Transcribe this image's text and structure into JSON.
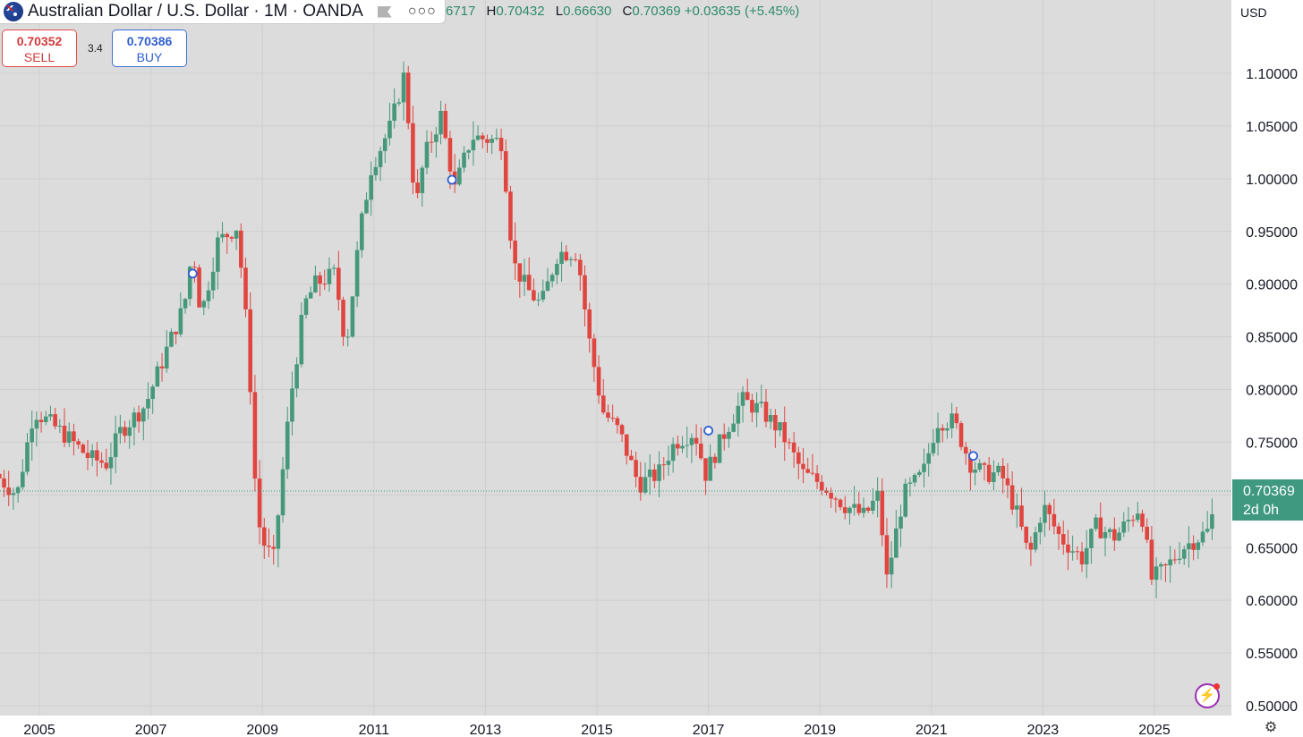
{
  "header": {
    "title": "Australian Dollar / U.S. Dollar · 1M · OANDA",
    "ohlc_open_tail": "6717",
    "high_key": "H",
    "high": "0.70432",
    "low_key": "L",
    "low": "0.66630",
    "close_key": "C",
    "close": "0.70369",
    "change": "+0.03635 (+5.45%)"
  },
  "trade": {
    "sell_price": "0.70352",
    "sell_label": "SELL",
    "spread": "3.4",
    "buy_price": "0.70386",
    "buy_label": "BUY"
  },
  "currency": "USD",
  "last_price": {
    "value": "0.70369",
    "countdown": "2d 0h",
    "color": "#3f9880"
  },
  "colors": {
    "up": "#46987a",
    "down": "#e0453f",
    "background": "#dcdcdc",
    "grid": "#cfcfcf",
    "marker": "#2f5fd0"
  },
  "icons": [
    "flag-icon",
    "more-icon",
    "bolt-icon",
    "settings-icon"
  ],
  "chart_data": {
    "type": "candlestick",
    "interval": "1M",
    "ylim": [
      0.5,
      1.13
    ],
    "xlim": [
      2004.2,
      2026.9
    ],
    "yticks": [
      "0.50000",
      "0.55000",
      "0.60000",
      "0.65000",
      "0.70000",
      "0.75000",
      "0.80000",
      "0.85000",
      "0.90000",
      "0.95000",
      "1.00000",
      "1.05000",
      "1.10000"
    ],
    "xticks": [
      "2005",
      "2007",
      "2009",
      "2011",
      "2013",
      "2015",
      "2017",
      "2019",
      "2021",
      "2023",
      "2025"
    ],
    "last_close": 0.70369,
    "markers": [
      {
        "t": 2007.75,
        "price": 0.91
      },
      {
        "t": 2012.4,
        "price": 0.999
      },
      {
        "t": 2017.0,
        "price": 0.761
      },
      {
        "t": 2021.75,
        "price": 0.737
      }
    ],
    "anchors": [
      [
        2004.2,
        0.72
      ],
      [
        2004.6,
        0.7
      ],
      [
        2004.9,
        0.78
      ],
      [
        2005.15,
        0.77
      ],
      [
        2005.5,
        0.755
      ],
      [
        2005.9,
        0.735
      ],
      [
        2006.2,
        0.73
      ],
      [
        2006.45,
        0.76
      ],
      [
        2006.9,
        0.785
      ],
      [
        2007.3,
        0.84
      ],
      [
        2007.6,
        0.88
      ],
      [
        2007.75,
        0.935
      ],
      [
        2007.9,
        0.87
      ],
      [
        2008.2,
        0.94
      ],
      [
        2008.55,
        0.955
      ],
      [
        2008.75,
        0.84
      ],
      [
        2008.9,
        0.68
      ],
      [
        2009.05,
        0.65
      ],
      [
        2009.2,
        0.64
      ],
      [
        2009.5,
        0.79
      ],
      [
        2009.75,
        0.88
      ],
      [
        2009.95,
        0.9
      ],
      [
        2010.3,
        0.91
      ],
      [
        2010.5,
        0.84
      ],
      [
        2010.75,
        0.95
      ],
      [
        2010.95,
        1.01
      ],
      [
        2011.3,
        1.05
      ],
      [
        2011.55,
        1.1
      ],
      [
        2011.75,
        0.97
      ],
      [
        2011.9,
        1.02
      ],
      [
        2012.2,
        1.06
      ],
      [
        2012.45,
        0.99
      ],
      [
        2012.75,
        1.04
      ],
      [
        2013.3,
        1.035
      ],
      [
        2013.5,
        0.92
      ],
      [
        2013.75,
        0.895
      ],
      [
        2014.0,
        0.88
      ],
      [
        2014.3,
        0.93
      ],
      [
        2014.65,
        0.93
      ],
      [
        2014.85,
        0.85
      ],
      [
        2015.1,
        0.78
      ],
      [
        2015.4,
        0.76
      ],
      [
        2015.75,
        0.71
      ],
      [
        2016.1,
        0.72
      ],
      [
        2016.4,
        0.75
      ],
      [
        2016.75,
        0.76
      ],
      [
        2016.95,
        0.72
      ],
      [
        2017.3,
        0.76
      ],
      [
        2017.6,
        0.79
      ],
      [
        2017.95,
        0.78
      ],
      [
        2018.3,
        0.76
      ],
      [
        2018.7,
        0.72
      ],
      [
        2019.05,
        0.71
      ],
      [
        2019.45,
        0.69
      ],
      [
        2019.8,
        0.68
      ],
      [
        2020.05,
        0.7
      ],
      [
        2020.2,
        0.62
      ],
      [
        2020.5,
        0.7
      ],
      [
        2020.85,
        0.72
      ],
      [
        2021.1,
        0.77
      ],
      [
        2021.4,
        0.77
      ],
      [
        2021.7,
        0.73
      ],
      [
        2021.95,
        0.72
      ],
      [
        2022.25,
        0.72
      ],
      [
        2022.55,
        0.68
      ],
      [
        2022.75,
        0.64
      ],
      [
        2023.0,
        0.69
      ],
      [
        2023.3,
        0.66
      ],
      [
        2023.7,
        0.64
      ],
      [
        2023.95,
        0.67
      ],
      [
        2024.3,
        0.66
      ],
      [
        2024.75,
        0.69
      ],
      [
        2024.95,
        0.62
      ],
      [
        2025.2,
        0.63
      ],
      [
        2025.5,
        0.65
      ],
      [
        2025.8,
        0.66
      ],
      [
        2026.0,
        0.667
      ],
      [
        2026.1,
        0.704
      ]
    ]
  }
}
